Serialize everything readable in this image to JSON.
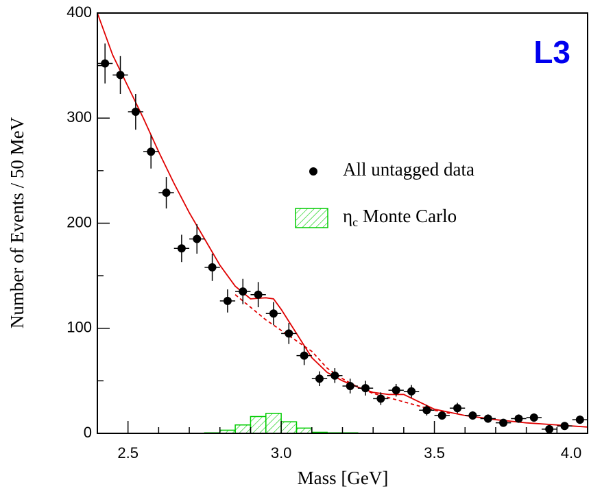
{
  "chart_data": {
    "type": "scatter",
    "annotation": "L3",
    "annotation_color": "#0000ee",
    "x_label": "Mass [GeV]",
    "y_label": "Number of Events / 50 MeV",
    "xlim": [
      2.4,
      4.0
    ],
    "ylim": [
      0,
      400
    ],
    "xticks": [
      {
        "value": 2.5,
        "label": "2.5"
      },
      {
        "value": 3.0,
        "label": "3.0"
      },
      {
        "value": 3.5,
        "label": "3.5"
      },
      {
        "value": 4.0,
        "label": "4.0"
      }
    ],
    "xminorticks": [
      2.6,
      2.7,
      2.8,
      2.9,
      3.1,
      3.2,
      3.3,
      3.4,
      3.6,
      3.7,
      3.8,
      3.9
    ],
    "yticks": [
      0,
      100,
      200,
      300,
      400
    ],
    "yminorticks": [
      50,
      150,
      250,
      350
    ],
    "series": [
      {
        "name": "All untagged data",
        "color": "#000000",
        "x": [
          2.425,
          2.475,
          2.525,
          2.575,
          2.625,
          2.675,
          2.725,
          2.775,
          2.825,
          2.875,
          2.925,
          2.975,
          3.025,
          3.075,
          3.125,
          3.175,
          3.225,
          3.275,
          3.325,
          3.375,
          3.425,
          3.475,
          3.525,
          3.575,
          3.625,
          3.675,
          3.725,
          3.775,
          3.825,
          3.875,
          3.925,
          3.975
        ],
        "values": [
          352,
          341,
          306,
          268,
          229,
          176,
          185,
          158,
          126,
          135,
          132,
          114,
          95,
          74,
          52,
          55,
          45,
          43,
          33,
          41,
          40,
          22,
          17,
          24,
          17,
          14,
          10,
          14,
          15,
          4,
          7,
          13
        ],
        "yerr": [
          19,
          18,
          17,
          16,
          15,
          13,
          14,
          13,
          11,
          12,
          12,
          11,
          10,
          9,
          7,
          7,
          7,
          7,
          6,
          6,
          6,
          5,
          4,
          5,
          4,
          4,
          3,
          4,
          4,
          2,
          3,
          4
        ],
        "xerr": 0.025
      },
      {
        "name": "ηc Monte Carlo",
        "color": "#00cc00",
        "bins": [
          2.75,
          2.8,
          2.85,
          2.9,
          2.95,
          3.0,
          3.05,
          3.1,
          3.15,
          3.2,
          3.25
        ],
        "values": [
          0.5,
          3,
          8,
          16,
          19,
          11,
          5,
          1,
          0.5,
          0.5
        ]
      }
    ],
    "curves": [
      {
        "color": "#e00000",
        "style": "solid",
        "x": [
          2.4,
          2.45,
          2.5,
          2.55,
          2.6,
          2.65,
          2.7,
          2.75,
          2.8,
          2.85,
          2.9,
          2.95,
          2.975,
          3.0,
          3.05,
          3.1,
          3.15,
          3.2,
          3.25,
          3.3,
          3.35,
          3.4,
          3.45,
          3.5,
          3.6,
          3.7,
          3.8,
          3.9,
          4.0
        ],
        "values": [
          400,
          360,
          330,
          300,
          268,
          238,
          210,
          185,
          160,
          140,
          128,
          129,
          128,
          118,
          95,
          72,
          58,
          50,
          44,
          39,
          37,
          37,
          30,
          23,
          17,
          13,
          10,
          8,
          6
        ]
      },
      {
        "color": "#e00000",
        "style": "dashed",
        "x": [
          2.85,
          2.9,
          2.95,
          3.0,
          3.05,
          3.1,
          3.15,
          3.2,
          3.25,
          3.3,
          3.35,
          3.4,
          3.45,
          3.5,
          3.55
        ],
        "values": [
          132,
          120,
          108,
          98,
          88,
          78,
          62,
          52,
          44,
          38,
          34,
          30,
          26,
          22,
          19
        ]
      }
    ]
  }
}
